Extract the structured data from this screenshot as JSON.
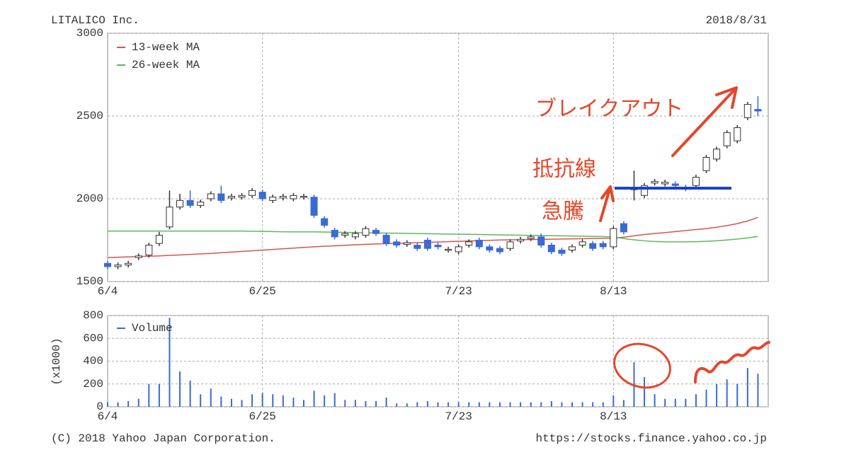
{
  "chart_data": [
    {
      "type": "candlestick",
      "title": "LITALICO Inc.",
      "subtitle": "2018/8/31",
      "categories": [
        "6/4",
        null,
        null,
        null,
        null,
        null,
        null,
        null,
        null,
        null,
        null,
        null,
        null,
        null,
        null,
        "6/25",
        null,
        null,
        null,
        null,
        null,
        null,
        null,
        null,
        null,
        null,
        null,
        null,
        null,
        null,
        null,
        null,
        null,
        null,
        "7/23",
        null,
        null,
        null,
        null,
        null,
        null,
        null,
        null,
        null,
        null,
        null,
        null,
        null,
        null,
        "8/13",
        null,
        null,
        null,
        null,
        null,
        null,
        null,
        null,
        null,
        null,
        null,
        null,
        null,
        null
      ],
      "open": [
        1610,
        1590,
        1600,
        1645,
        1660,
        1730,
        1830,
        1950,
        1990,
        1960,
        2000,
        2030,
        2005,
        2010,
        2020,
        2040,
        1990,
        2005,
        2000,
        2010,
        2010,
        1880,
        1810,
        1780,
        1770,
        1780,
        1810,
        1780,
        1740,
        1725,
        1720,
        1750,
        1720,
        1690,
        1680,
        1720,
        1750,
        1710,
        1700,
        1700,
        1745,
        1760,
        1770,
        1720,
        1690,
        1690,
        1720,
        1730,
        1730,
        1710,
        1850,
        2055,
        2020,
        2095,
        2090,
        2090,
        2070,
        2080,
        2170,
        2240,
        2320,
        2350,
        2490,
        2540
      ],
      "high": [
        1625,
        1615,
        1625,
        1670,
        1735,
        1800,
        2050,
        2030,
        2050,
        1995,
        2045,
        2080,
        2030,
        2035,
        2065,
        2055,
        2025,
        2030,
        2035,
        2030,
        2025,
        1895,
        1825,
        1805,
        1805,
        1835,
        1825,
        1795,
        1755,
        1750,
        1735,
        1765,
        1735,
        1710,
        1725,
        1755,
        1765,
        1725,
        1715,
        1755,
        1770,
        1785,
        1790,
        1735,
        1705,
        1725,
        1755,
        1745,
        1745,
        1835,
        1865,
        2170,
        2095,
        2120,
        2115,
        2105,
        2085,
        2145,
        2265,
        2315,
        2415,
        2445,
        2585,
        2620
      ],
      "low": [
        1575,
        1575,
        1585,
        1630,
        1645,
        1715,
        1815,
        1935,
        1945,
        1945,
        1985,
        1975,
        1990,
        1995,
        2005,
        1985,
        1975,
        1990,
        1985,
        1995,
        1885,
        1825,
        1755,
        1765,
        1755,
        1765,
        1775,
        1715,
        1705,
        1710,
        1685,
        1685,
        1695,
        1675,
        1665,
        1705,
        1695,
        1675,
        1665,
        1685,
        1730,
        1745,
        1705,
        1665,
        1655,
        1675,
        1705,
        1685,
        1695,
        1695,
        1785,
        1990,
        2005,
        2080,
        2075,
        2065,
        2045,
        2065,
        2155,
        2225,
        2305,
        2335,
        2475,
        2500
      ],
      "close": [
        1590,
        1600,
        1610,
        1655,
        1720,
        1780,
        1950,
        1990,
        1960,
        1980,
        2030,
        1990,
        2015,
        2020,
        2050,
        2000,
        2010,
        2015,
        2020,
        2015,
        1900,
        1840,
        1770,
        1790,
        1790,
        1820,
        1790,
        1730,
        1720,
        1735,
        1700,
        1700,
        1710,
        1695,
        1710,
        1740,
        1710,
        1690,
        1680,
        1740,
        1755,
        1770,
        1720,
        1680,
        1670,
        1710,
        1740,
        1700,
        1710,
        1820,
        1800,
        2065,
        2080,
        2105,
        2100,
        2080,
        2060,
        2130,
        2250,
        2300,
        2400,
        2430,
        2570,
        2530
      ],
      "up_color": "#ffffff",
      "down_color": "#3a6ad6",
      "series": [
        {
          "name": "13-week MA",
          "color": "#d9534f",
          "values": [
            1645,
            1647,
            1649,
            1651,
            1653,
            1655,
            1658,
            1661,
            1664,
            1667,
            1670,
            1674,
            1678,
            1682,
            1686,
            1690,
            1694,
            1698,
            1702,
            1706,
            1710,
            1713,
            1716,
            1719,
            1722,
            1725,
            1727,
            1729,
            1731,
            1733,
            1735,
            1737,
            1739,
            1741,
            1743,
            1745,
            1747,
            1749,
            1751,
            1752,
            1753,
            1754,
            1755,
            1756,
            1757,
            1758,
            1759,
            1760,
            1761,
            1762,
            1768,
            1776,
            1784,
            1790,
            1796,
            1802,
            1808,
            1814,
            1820,
            1828,
            1838,
            1850,
            1866,
            1888
          ]
        },
        {
          "name": "26-week MA",
          "color": "#5cb85c",
          "values": [
            1805,
            1805,
            1805,
            1805,
            1805,
            1805,
            1805,
            1805,
            1805,
            1805,
            1805,
            1805,
            1805,
            1805,
            1804,
            1803,
            1802,
            1801,
            1800,
            1800,
            1800,
            1799,
            1798,
            1797,
            1796,
            1795,
            1794,
            1793,
            1792,
            1791,
            1790,
            1789,
            1788,
            1787,
            1786,
            1785,
            1784,
            1783,
            1782,
            1781,
            1780,
            1779,
            1778,
            1777,
            1776,
            1775,
            1774,
            1773,
            1772,
            1770,
            1760,
            1752,
            1746,
            1742,
            1740,
            1740,
            1740,
            1741,
            1743,
            1746,
            1751,
            1757,
            1764,
            1772
          ]
        }
      ],
      "ylim": [
        1500,
        3000
      ],
      "yticks": [
        1500,
        2000,
        2500,
        3000
      ],
      "grid": true,
      "legend": "top-left",
      "annotations": [
        "ブレイクアウト",
        "抵抗線",
        "急騰"
      ]
    },
    {
      "type": "bar",
      "y_label": "(x1000)",
      "categories": [
        "6/4",
        null,
        null,
        null,
        null,
        null,
        null,
        null,
        null,
        null,
        null,
        null,
        null,
        null,
        null,
        "6/25",
        null,
        null,
        null,
        null,
        null,
        null,
        null,
        null,
        null,
        null,
        null,
        null,
        null,
        null,
        null,
        null,
        null,
        null,
        "7/23",
        null,
        null,
        null,
        null,
        null,
        null,
        null,
        null,
        null,
        null,
        null,
        null,
        null,
        null,
        "8/13",
        null,
        null,
        null,
        null,
        null,
        null,
        null,
        null,
        null,
        null,
        null,
        null,
        null,
        null
      ],
      "series": [
        {
          "name": "Volume",
          "color": "#3a6ad6",
          "values": [
            40,
            40,
            50,
            70,
            200,
            200,
            780,
            310,
            230,
            110,
            160,
            90,
            70,
            60,
            110,
            120,
            110,
            100,
            80,
            60,
            140,
            100,
            120,
            60,
            60,
            50,
            50,
            80,
            30,
            30,
            40,
            50,
            40,
            40,
            40,
            40,
            40,
            40,
            40,
            40,
            40,
            40,
            40,
            50,
            40,
            40,
            40,
            40,
            40,
            100,
            60,
            390,
            260,
            110,
            70,
            70,
            70,
            110,
            150,
            200,
            240,
            200,
            340,
            290
          ]
        }
      ],
      "ylim": [
        0,
        800
      ],
      "yticks": [
        0,
        200,
        400,
        600,
        800
      ],
      "grid": true,
      "legend": "top-left",
      "credit": "(C) 2018 Yahoo Japan Corporation.",
      "source": "https://stocks.finance.yahoo.co.jp"
    }
  ]
}
